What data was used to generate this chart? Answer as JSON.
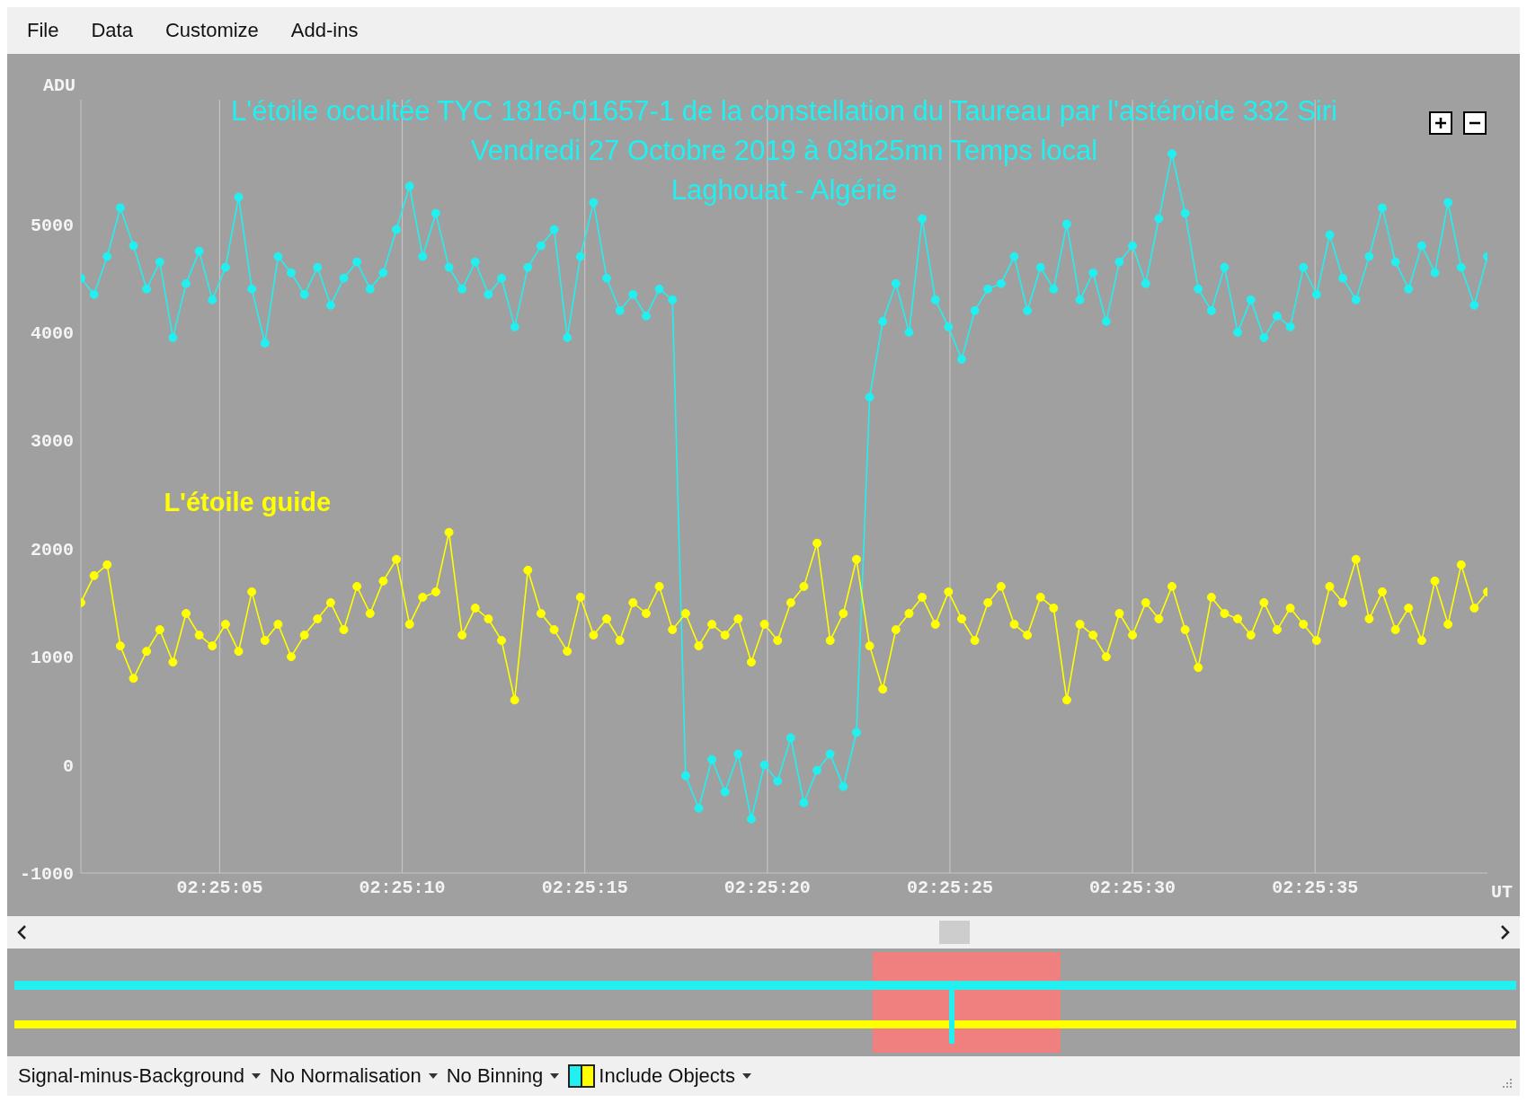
{
  "chart_data": [
    {
      "type": "line",
      "title": "L'étoile occultée TYC 1816-01657-1 de la constellation du Taureau par l'astéroïde 332 Siri",
      "subtitle": "Vendredi 27 Octobre 2019 à 03h25mn Temps local\nLaghouat - Algérie",
      "xlabel": "UT",
      "ylabel": "ADU",
      "annotations": [
        "File",
        "Data",
        "Customize",
        "Add-ins",
        "Signal-minus-Background",
        "No Normalisation",
        "No Binning",
        "Include Objects"
      ],
      "x": [
        2.417,
        2.4171,
        2.4172,
        2.4173,
        2.4174,
        2.4175,
        2.4176,
        2.4177,
        2.4178,
        2.4179,
        2.418,
        2.4181,
        2.4182,
        2.4183,
        2.4184,
        2.4185,
        2.4186,
        2.4187,
        2.4188,
        2.4189,
        2.419,
        2.4191,
        2.4192,
        2.4193,
        2.4194,
        2.4195,
        2.4196,
        2.4197,
        2.4198,
        2.4199,
        2.42,
        2.4201,
        2.4202,
        2.4203,
        2.4204,
        2.4205,
        2.4206,
        2.4207,
        2.4208,
        2.4209,
        2.421,
        2.4211,
        2.4212,
        2.4213,
        2.4214,
        2.4215,
        2.4216,
        2.4217,
        2.4218,
        2.4219,
        2.422,
        2.4221,
        2.4222,
        2.4223,
        2.4224,
        2.4225,
        2.4226,
        2.4227,
        2.4228,
        2.4229,
        2.423,
        2.4231,
        2.4232,
        2.4233,
        2.4234,
        2.4235,
        2.4236,
        2.4237,
        2.4238,
        2.4239,
        2.424,
        2.4241,
        2.4242,
        2.4243,
        2.4244,
        2.4245,
        2.4246,
        2.4247,
        2.4248,
        2.4249,
        2.425,
        2.4251,
        2.4252,
        2.4253,
        2.4254,
        2.4255,
        2.4256,
        2.4257,
        2.4258,
        2.4259,
        2.426,
        2.4261,
        2.4262,
        2.4263,
        2.4264,
        2.4265,
        2.4266,
        2.4267,
        2.4268,
        2.4269,
        2.427,
        2.4271,
        2.4272,
        2.4273,
        2.4274,
        2.4275,
        2.4276,
        2.4277
      ],
      "series": [
        {
          "color": "#22f0f0",
          "values": [
            4500,
            4350,
            4700,
            5150,
            4800,
            4400,
            4650,
            3950,
            4450,
            4750,
            4300,
            4600,
            5250,
            4400,
            3900,
            4700,
            4550,
            4350,
            4600,
            4250,
            4500,
            4650,
            4400,
            4550,
            4950,
            5350,
            4700,
            5100,
            4600,
            4400,
            4650,
            4350,
            4500,
            4050,
            4600,
            4800,
            4950,
            3950,
            4700,
            5200,
            4500,
            4200,
            4350,
            4150,
            4400,
            4300,
            -100,
            -400,
            50,
            -250,
            100,
            -500,
            0,
            -150,
            250,
            -350,
            -50,
            100,
            -200,
            300,
            3400,
            4100,
            4450,
            4000,
            5050,
            4300,
            4050,
            3750,
            4200,
            4400,
            4450,
            4700,
            4200,
            4600,
            4400,
            5000,
            4300,
            4550,
            4100,
            4650,
            4800,
            4450,
            5050,
            5650,
            5100,
            4400,
            4200,
            4600,
            4000,
            4300,
            3950,
            4150,
            4050,
            4600,
            4350,
            4900,
            4500,
            4300,
            4700,
            5150,
            4650,
            4400,
            4800,
            4550,
            5200,
            4600,
            4250,
            4700
          ]
        },
        {
          "name": "L'étoile guide",
          "color": "#ffff00",
          "values": [
            1500,
            1750,
            1850,
            1100,
            800,
            1050,
            1250,
            950,
            1400,
            1200,
            1100,
            1300,
            1050,
            1600,
            1150,
            1300,
            1000,
            1200,
            1350,
            1500,
            1250,
            1650,
            1400,
            1700,
            1900,
            1300,
            1550,
            1600,
            2150,
            1200,
            1450,
            1350,
            1150,
            600,
            1800,
            1400,
            1250,
            1050,
            1550,
            1200,
            1350,
            1150,
            1500,
            1400,
            1650,
            1250,
            1400,
            1100,
            1300,
            1200,
            1350,
            950,
            1300,
            1150,
            1500,
            1650,
            2050,
            1150,
            1400,
            1900,
            1100,
            700,
            1250,
            1400,
            1550,
            1300,
            1600,
            1350,
            1150,
            1500,
            1650,
            1300,
            1200,
            1550,
            1450,
            600,
            1300,
            1200,
            1000,
            1400,
            1200,
            1500,
            1350,
            1650,
            1250,
            900,
            1550,
            1400,
            1350,
            1200,
            1500,
            1250,
            1450,
            1300,
            1150,
            1650,
            1500,
            1900,
            1350,
            1600,
            1250,
            1450,
            1150,
            1700,
            1300,
            1850,
            1450,
            1600
          ]
        }
      ],
      "xlim": [
        2.417,
        2.4277
      ],
      "xticks": [
        {
          "value": 2.4180556,
          "label": "02:25:05"
        },
        {
          "value": 2.4194444,
          "label": "02:25:10"
        },
        {
          "value": 2.4208333,
          "label": "02:25:15"
        },
        {
          "value": 2.4222222,
          "label": "02:25:20"
        },
        {
          "value": 2.4236111,
          "label": "02:25:25"
        },
        {
          "value": 2.425,
          "label": "02:25:30"
        },
        {
          "value": 2.4263889,
          "label": "02:25:35"
        }
      ],
      "ylim": [
        -1000,
        6150
      ],
      "yticks": [
        -1000,
        0,
        1000,
        2000,
        3000,
        4000,
        5000
      ],
      "grid": true,
      "marker": "circle",
      "line_style": "solid"
    }
  ]
}
